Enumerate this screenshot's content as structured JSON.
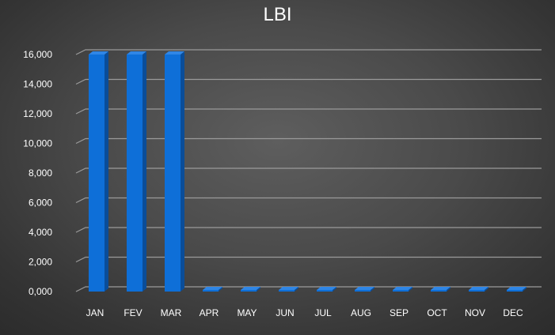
{
  "chart_data": {
    "type": "bar",
    "title": "LBI",
    "categories": [
      "JAN",
      "FEV",
      "MAR",
      "APR",
      "MAY",
      "JUN",
      "JUL",
      "AUG",
      "SEP",
      "OCT",
      "NOV",
      "DEC"
    ],
    "series": [
      {
        "values": [
          16000,
          16000,
          16000,
          0,
          0,
          0,
          0,
          0,
          0,
          0,
          0,
          0
        ]
      }
    ],
    "yticks": [
      "0,000",
      "2,000",
      "4,000",
      "6,000",
      "8,000",
      "10,000",
      "12,000",
      "14,000",
      "16,000"
    ],
    "ylim": [
      0,
      16000
    ],
    "grid": true,
    "legend": "none",
    "colors": {
      "bar_front": "#0e6fd8",
      "bar_side": "#0a4d99",
      "bar_top": "#2f86e6",
      "gridline": "#9a9a9a",
      "text": "#ffffff"
    }
  }
}
